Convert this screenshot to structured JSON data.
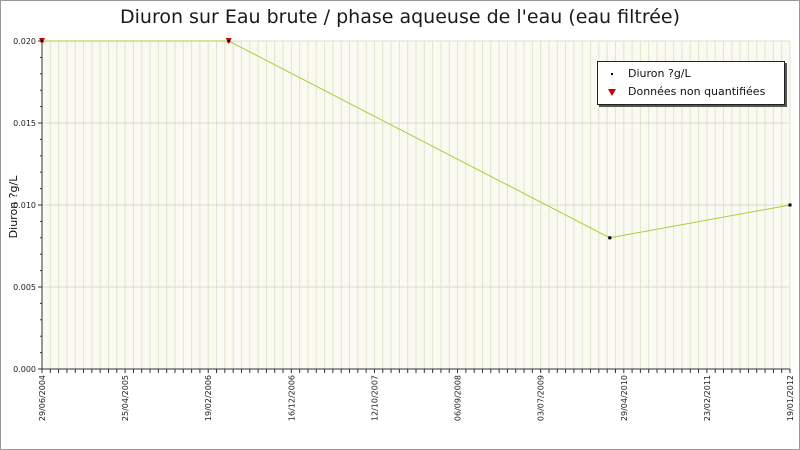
{
  "chart_data": {
    "type": "line",
    "title": "Diuron sur Eau brute / phase aqueuse de l'eau (eau filtrée)",
    "ylabel": "Diuron ?g/L",
    "xlabel": "",
    "ylim": [
      0,
      0.02
    ],
    "xlim": [
      "2004-06-29",
      "2012-01-19"
    ],
    "y_ticks": [
      "0.000",
      "0.005",
      "0.010",
      "0.015",
      "0.020"
    ],
    "x_ticks": [
      "29/06/2004",
      "25/04/2005",
      "19/02/2006",
      "16/12/2006",
      "12/10/2007",
      "06/09/2008",
      "03/07/2009",
      "29/04/2010",
      "23/02/2011",
      "19/01/2012"
    ],
    "grid": true,
    "legend_position": "top-right",
    "line_color": "#a8cf3a",
    "series": [
      {
        "name": "Diuron ?g/L",
        "color": "#000000",
        "points": [
          {
            "x": "2004-06-29",
            "y": 0.02
          },
          {
            "x": "2006-05-19",
            "y": 0.02
          },
          {
            "x": "2010-03-25",
            "y": 0.008
          },
          {
            "x": "2012-01-19",
            "y": 0.01
          }
        ]
      },
      {
        "name": "Données non quantifiées",
        "color": "#cc0000",
        "points": [
          {
            "x": "2004-06-29",
            "y": 0.02
          },
          {
            "x": "2006-05-19",
            "y": 0.02
          }
        ]
      }
    ]
  }
}
